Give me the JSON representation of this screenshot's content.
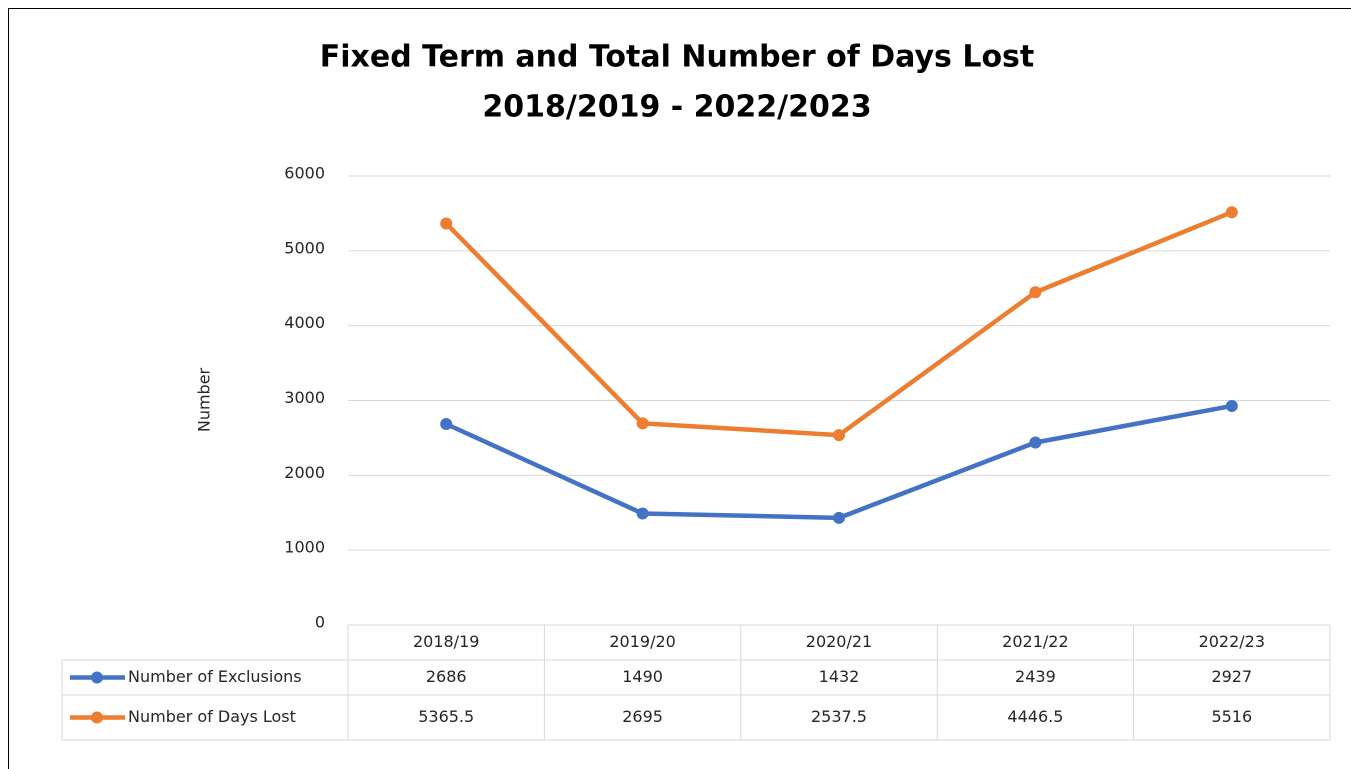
{
  "chart_data": {
    "type": "line",
    "title": "Fixed Term and Total Number of Days Lost",
    "subtitle": "2018/2019 - 2022/2023",
    "y_label": "Number",
    "categories": [
      "2018/19",
      "2019/20",
      "2020/21",
      "2021/22",
      "2022/23"
    ],
    "series": [
      {
        "name": "Number of Exclusions",
        "color": "#4472c4",
        "values": [
          2686,
          1490,
          1432,
          2439,
          2927
        ]
      },
      {
        "name": "Number of Days Lost",
        "color": "#ed7d31",
        "values": [
          5365.5,
          2695,
          2537.5,
          4446.5,
          5516
        ]
      }
    ],
    "ylim": [
      0,
      6000
    ],
    "yticks": [
      0,
      1000,
      2000,
      3000,
      4000,
      5000,
      6000
    ],
    "grid": true,
    "data_table": true
  }
}
